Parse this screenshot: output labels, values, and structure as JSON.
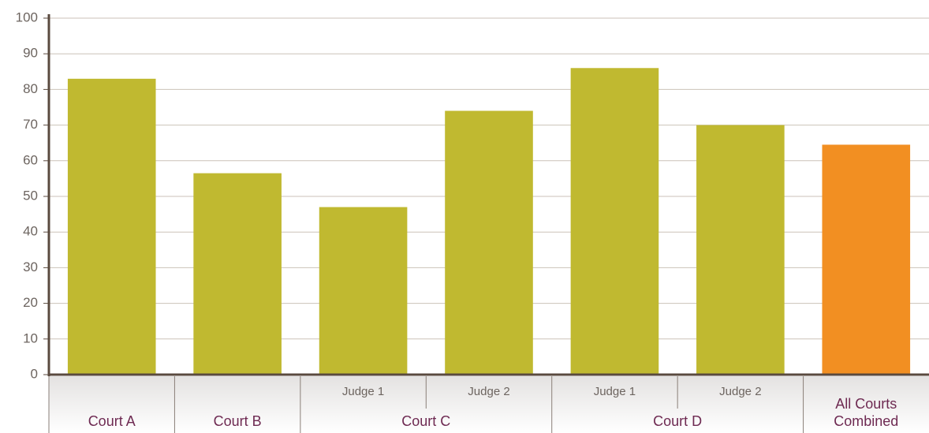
{
  "chart_data": {
    "type": "bar",
    "groups": [
      {
        "name": "Court A",
        "values": [
          83
        ]
      },
      {
        "name": "Court B",
        "values": [
          56.5
        ]
      },
      {
        "name": "Court C",
        "categories": [
          "Judge 1",
          "Judge 2"
        ],
        "values": [
          47,
          74
        ]
      },
      {
        "name": "Court D",
        "categories": [
          "Judge 1",
          "Judge 2"
        ],
        "values": [
          86,
          70
        ]
      },
      {
        "name": "All Courts Combined",
        "values": [
          64.5
        ],
        "color": "#f28f22"
      }
    ],
    "color": "#c0b930",
    "ylim": [
      0,
      100
    ],
    "yticks": [
      0,
      10,
      20,
      30,
      40,
      50,
      60,
      70,
      80,
      90,
      100
    ],
    "grid": true
  }
}
